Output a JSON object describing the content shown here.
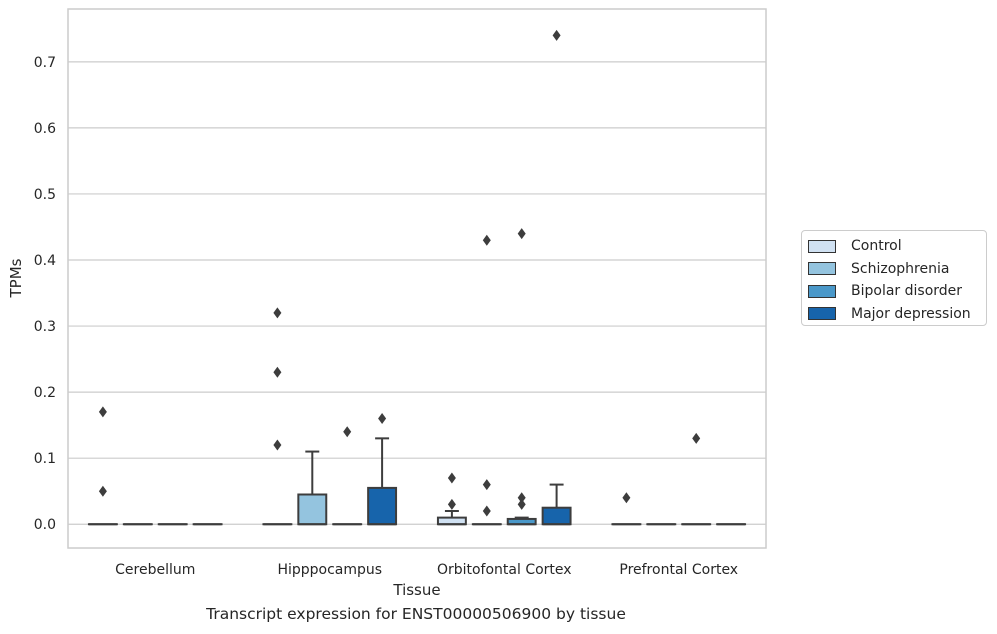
{
  "chart_data": {
    "type": "box",
    "xlabel": "Tissue",
    "ylabel": "TPMs",
    "caption": "Transcript expression for ENST00000506900 by tissue",
    "categories": [
      "Cerebellum",
      "Hipppocampus",
      "Orbitofontal Cortex",
      "Prefrontal Cortex"
    ],
    "ylim": [
      -0.036,
      0.78
    ],
    "yticks": [
      "0.0",
      "0.1",
      "0.2",
      "0.3",
      "0.4",
      "0.5",
      "0.6",
      "0.7"
    ],
    "grid": "horizontal",
    "legend_position": "right",
    "series": [
      {
        "name": "Control",
        "color": "#d0e1f2",
        "boxes": [
          {
            "q1": 0,
            "median": 0,
            "q3": 0,
            "whisker_low": 0,
            "whisker_high": 0,
            "outliers": [
              0.17,
              0.05
            ]
          },
          {
            "q1": 0,
            "median": 0,
            "q3": 0,
            "whisker_low": 0,
            "whisker_high": 0,
            "outliers": [
              0.32,
              0.23,
              0.12
            ]
          },
          {
            "q1": 0,
            "median": 0,
            "q3": 0.01,
            "whisker_low": 0,
            "whisker_high": 0.02,
            "outliers": [
              0.07,
              0.03
            ]
          },
          {
            "q1": 0,
            "median": 0,
            "q3": 0,
            "whisker_low": 0,
            "whisker_high": 0,
            "outliers": [
              0.04
            ]
          }
        ]
      },
      {
        "name": "Schizophrenia",
        "color": "#94c4df",
        "boxes": [
          {
            "q1": 0,
            "median": 0,
            "q3": 0,
            "whisker_low": 0,
            "whisker_high": 0,
            "outliers": []
          },
          {
            "q1": 0,
            "median": 0,
            "q3": 0.045,
            "whisker_low": 0,
            "whisker_high": 0.11,
            "outliers": []
          },
          {
            "q1": 0,
            "median": 0,
            "q3": 0,
            "whisker_low": 0,
            "whisker_high": 0,
            "outliers": [
              0.43,
              0.06,
              0.02
            ]
          },
          {
            "q1": 0,
            "median": 0,
            "q3": 0,
            "whisker_low": 0,
            "whisker_high": 0,
            "outliers": []
          }
        ]
      },
      {
        "name": "Bipolar disorder",
        "color": "#4a98c9",
        "boxes": [
          {
            "q1": 0,
            "median": 0,
            "q3": 0,
            "whisker_low": 0,
            "whisker_high": 0,
            "outliers": []
          },
          {
            "q1": 0,
            "median": 0,
            "q3": 0,
            "whisker_low": 0,
            "whisker_high": 0,
            "outliers": [
              0.14
            ]
          },
          {
            "q1": 0,
            "median": 0,
            "q3": 0.008,
            "whisker_low": 0,
            "whisker_high": 0.01,
            "outliers": [
              0.44,
              0.04,
              0.03
            ]
          },
          {
            "q1": 0,
            "median": 0,
            "q3": 0,
            "whisker_low": 0,
            "whisker_high": 0,
            "outliers": [
              0.13
            ]
          }
        ]
      },
      {
        "name": "Major depression",
        "color": "#1764ab",
        "boxes": [
          {
            "q1": 0,
            "median": 0,
            "q3": 0,
            "whisker_low": 0,
            "whisker_high": 0,
            "outliers": []
          },
          {
            "q1": 0,
            "median": 0,
            "q3": 0.055,
            "whisker_low": 0,
            "whisker_high": 0.13,
            "outliers": [
              0.16
            ]
          },
          {
            "q1": 0,
            "median": 0,
            "q3": 0.025,
            "whisker_low": 0,
            "whisker_high": 0.06,
            "outliers": [
              0.74
            ]
          },
          {
            "q1": 0,
            "median": 0,
            "q3": 0,
            "whisker_low": 0,
            "whisker_high": 0,
            "outliers": []
          }
        ]
      }
    ]
  }
}
